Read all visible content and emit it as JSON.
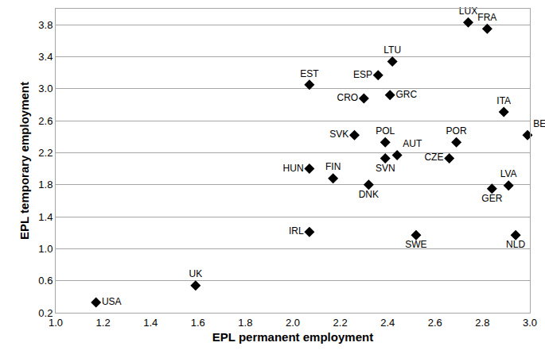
{
  "chart_data": {
    "type": "scatter",
    "x_label": "EPL permanent employment",
    "y_label": "EPL temporary employment",
    "labels": [
      "USA",
      "UK",
      "IRL",
      "SWE",
      "NLD",
      "HUN",
      "FIN",
      "DNK",
      "SVN",
      "AUT",
      "POL",
      "SVK",
      "CZE",
      "POR",
      "GER",
      "LVA",
      "BEL",
      "ITA",
      "CRO",
      "GRC",
      "ESP",
      "LTU",
      "EST",
      "LUX",
      "FRA"
    ],
    "x": [
      1.17,
      1.59,
      2.07,
      2.52,
      2.94,
      2.07,
      2.17,
      2.32,
      2.39,
      2.44,
      2.39,
      2.26,
      2.66,
      2.69,
      2.84,
      2.91,
      2.99,
      2.89,
      2.3,
      2.41,
      2.36,
      2.42,
      2.07,
      2.74,
      2.82
    ],
    "values": [
      0.33,
      0.54,
      1.21,
      1.17,
      1.17,
      2.0,
      1.88,
      1.8,
      2.13,
      2.17,
      2.33,
      2.42,
      2.13,
      2.33,
      1.75,
      1.79,
      2.42,
      2.71,
      2.88,
      2.92,
      3.17,
      3.34,
      3.05,
      3.83,
      3.75
    ],
    "color": "#000000",
    "marker": "diamond",
    "xlim": [
      1.0,
      3.0
    ],
    "xticks": [
      {
        "value": 1,
        "label": "1.0"
      },
      1.2,
      1.4,
      1.6,
      1.8,
      {
        "value": 2,
        "label": "2.0"
      },
      2.2,
      2.4,
      2.6,
      2.8,
      {
        "value": 3,
        "label": "3.0"
      }
    ],
    "ylim": [
      0.2,
      4.0
    ],
    "yticks": [
      0.2,
      0.6,
      {
        "value": 1,
        "label": "1.0"
      },
      1.4,
      1.8,
      2.2,
      2.6,
      {
        "value": 3,
        "label": "3.0"
      },
      3.4,
      3.8
    ],
    "grid": "y"
  }
}
